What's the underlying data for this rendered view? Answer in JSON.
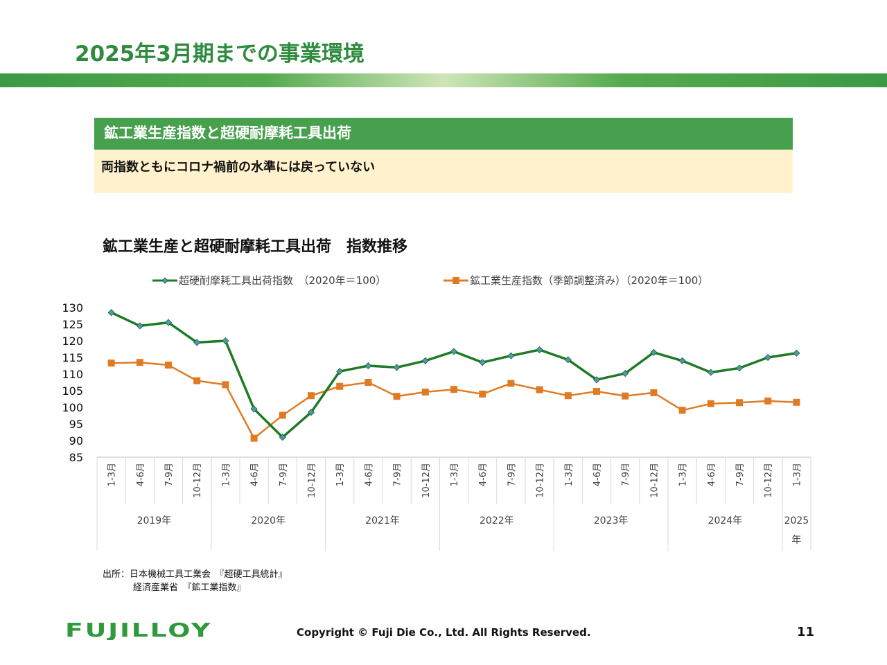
{
  "slide": {
    "title": "2025年3月期までの事業環境",
    "box_heading": "鉱工業生産指数と超硬耐摩耗工具出荷",
    "box_text": "両指数ともにコロナ禍前の水準には戻っていない",
    "source_line1": "出所：日本機械工具工業会　『超硬工具統計』",
    "source_line2": "経済産業省　『鉱工業指数』",
    "logo_text": "FUJILLOY",
    "copyright": "Copyright © Fuji Die Co., Ltd. All Rights Reserved.",
    "page_number": "11"
  },
  "chart_data": {
    "type": "line",
    "title": "鉱工業生産と超硬耐摩耗工具出荷　指数推移",
    "quarters": [
      "1-3月",
      "4-6月",
      "7-9月",
      "10-12月",
      "1-3月",
      "4-6月",
      "7-9月",
      "10-12月",
      "1-3月",
      "4-6月",
      "7-9月",
      "10-12月",
      "1-3月",
      "4-6月",
      "7-9月",
      "10-12月",
      "1-3月",
      "4-6月",
      "7-9月",
      "10-12月",
      "1-3月",
      "4-6月",
      "7-9月",
      "10-12月",
      "1-3月"
    ],
    "years": [
      {
        "label": "2019年",
        "count": 4
      },
      {
        "label": "2020年",
        "count": 4
      },
      {
        "label": "2021年",
        "count": 4
      },
      {
        "label": "2022年",
        "count": 4
      },
      {
        "label": "2023年",
        "count": 4
      },
      {
        "label": "2024年",
        "count": 4
      },
      {
        "label": "2025年",
        "count": 1
      }
    ],
    "ylim": [
      85,
      130
    ],
    "yticks": [
      85,
      90,
      95,
      100,
      105,
      110,
      115,
      120,
      125,
      130
    ],
    "legend_position": "top",
    "series": [
      {
        "name": "超硬耐摩耗工具出荷指数　（2020年＝100）",
        "color": "#1e7a24",
        "marker": "diamond",
        "values": [
          128.5,
          124.5,
          125.5,
          119.5,
          120.0,
          99.5,
          91.0,
          98.5,
          110.8,
          112.5,
          112.0,
          114.0,
          116.8,
          113.5,
          115.5,
          117.3,
          114.3,
          108.3,
          110.2,
          116.5,
          114.0,
          110.5,
          111.8,
          115.0,
          116.3
        ]
      },
      {
        "name": "鉱工業生産指数（季節調整済み）（2020年＝100）",
        "color": "#e07b24",
        "marker": "square",
        "values": [
          113.3,
          113.5,
          112.7,
          108.0,
          106.8,
          90.7,
          97.6,
          103.5,
          106.3,
          107.5,
          103.3,
          104.6,
          105.4,
          104.0,
          107.2,
          105.3,
          103.5,
          104.8,
          103.4,
          104.4,
          99.1,
          101.1,
          101.4,
          101.9,
          101.5
        ]
      }
    ]
  }
}
